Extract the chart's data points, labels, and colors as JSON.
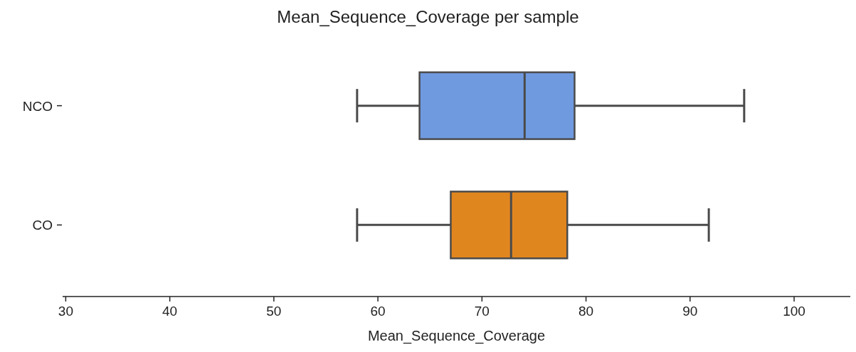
{
  "chart_data": {
    "type": "box",
    "orientation": "horizontal",
    "title": "Mean_Sequence_Coverage per sample",
    "xlabel": "Mean_Sequence_Coverage",
    "categories": [
      "NCO",
      "CO"
    ],
    "colors": [
      "#6f9ae0",
      "#e0861f"
    ],
    "boxes": [
      {
        "low": 58,
        "q1": 64,
        "median": 74.1,
        "q3": 78.9,
        "high": 95.2
      },
      {
        "low": 58,
        "q1": 67,
        "median": 72.8,
        "q3": 78.2,
        "high": 91.8
      }
    ],
    "xlim": [
      29.7,
      105.4
    ],
    "xticks": [
      30,
      40,
      50,
      60,
      70,
      80,
      90,
      100
    ],
    "grid": false
  }
}
